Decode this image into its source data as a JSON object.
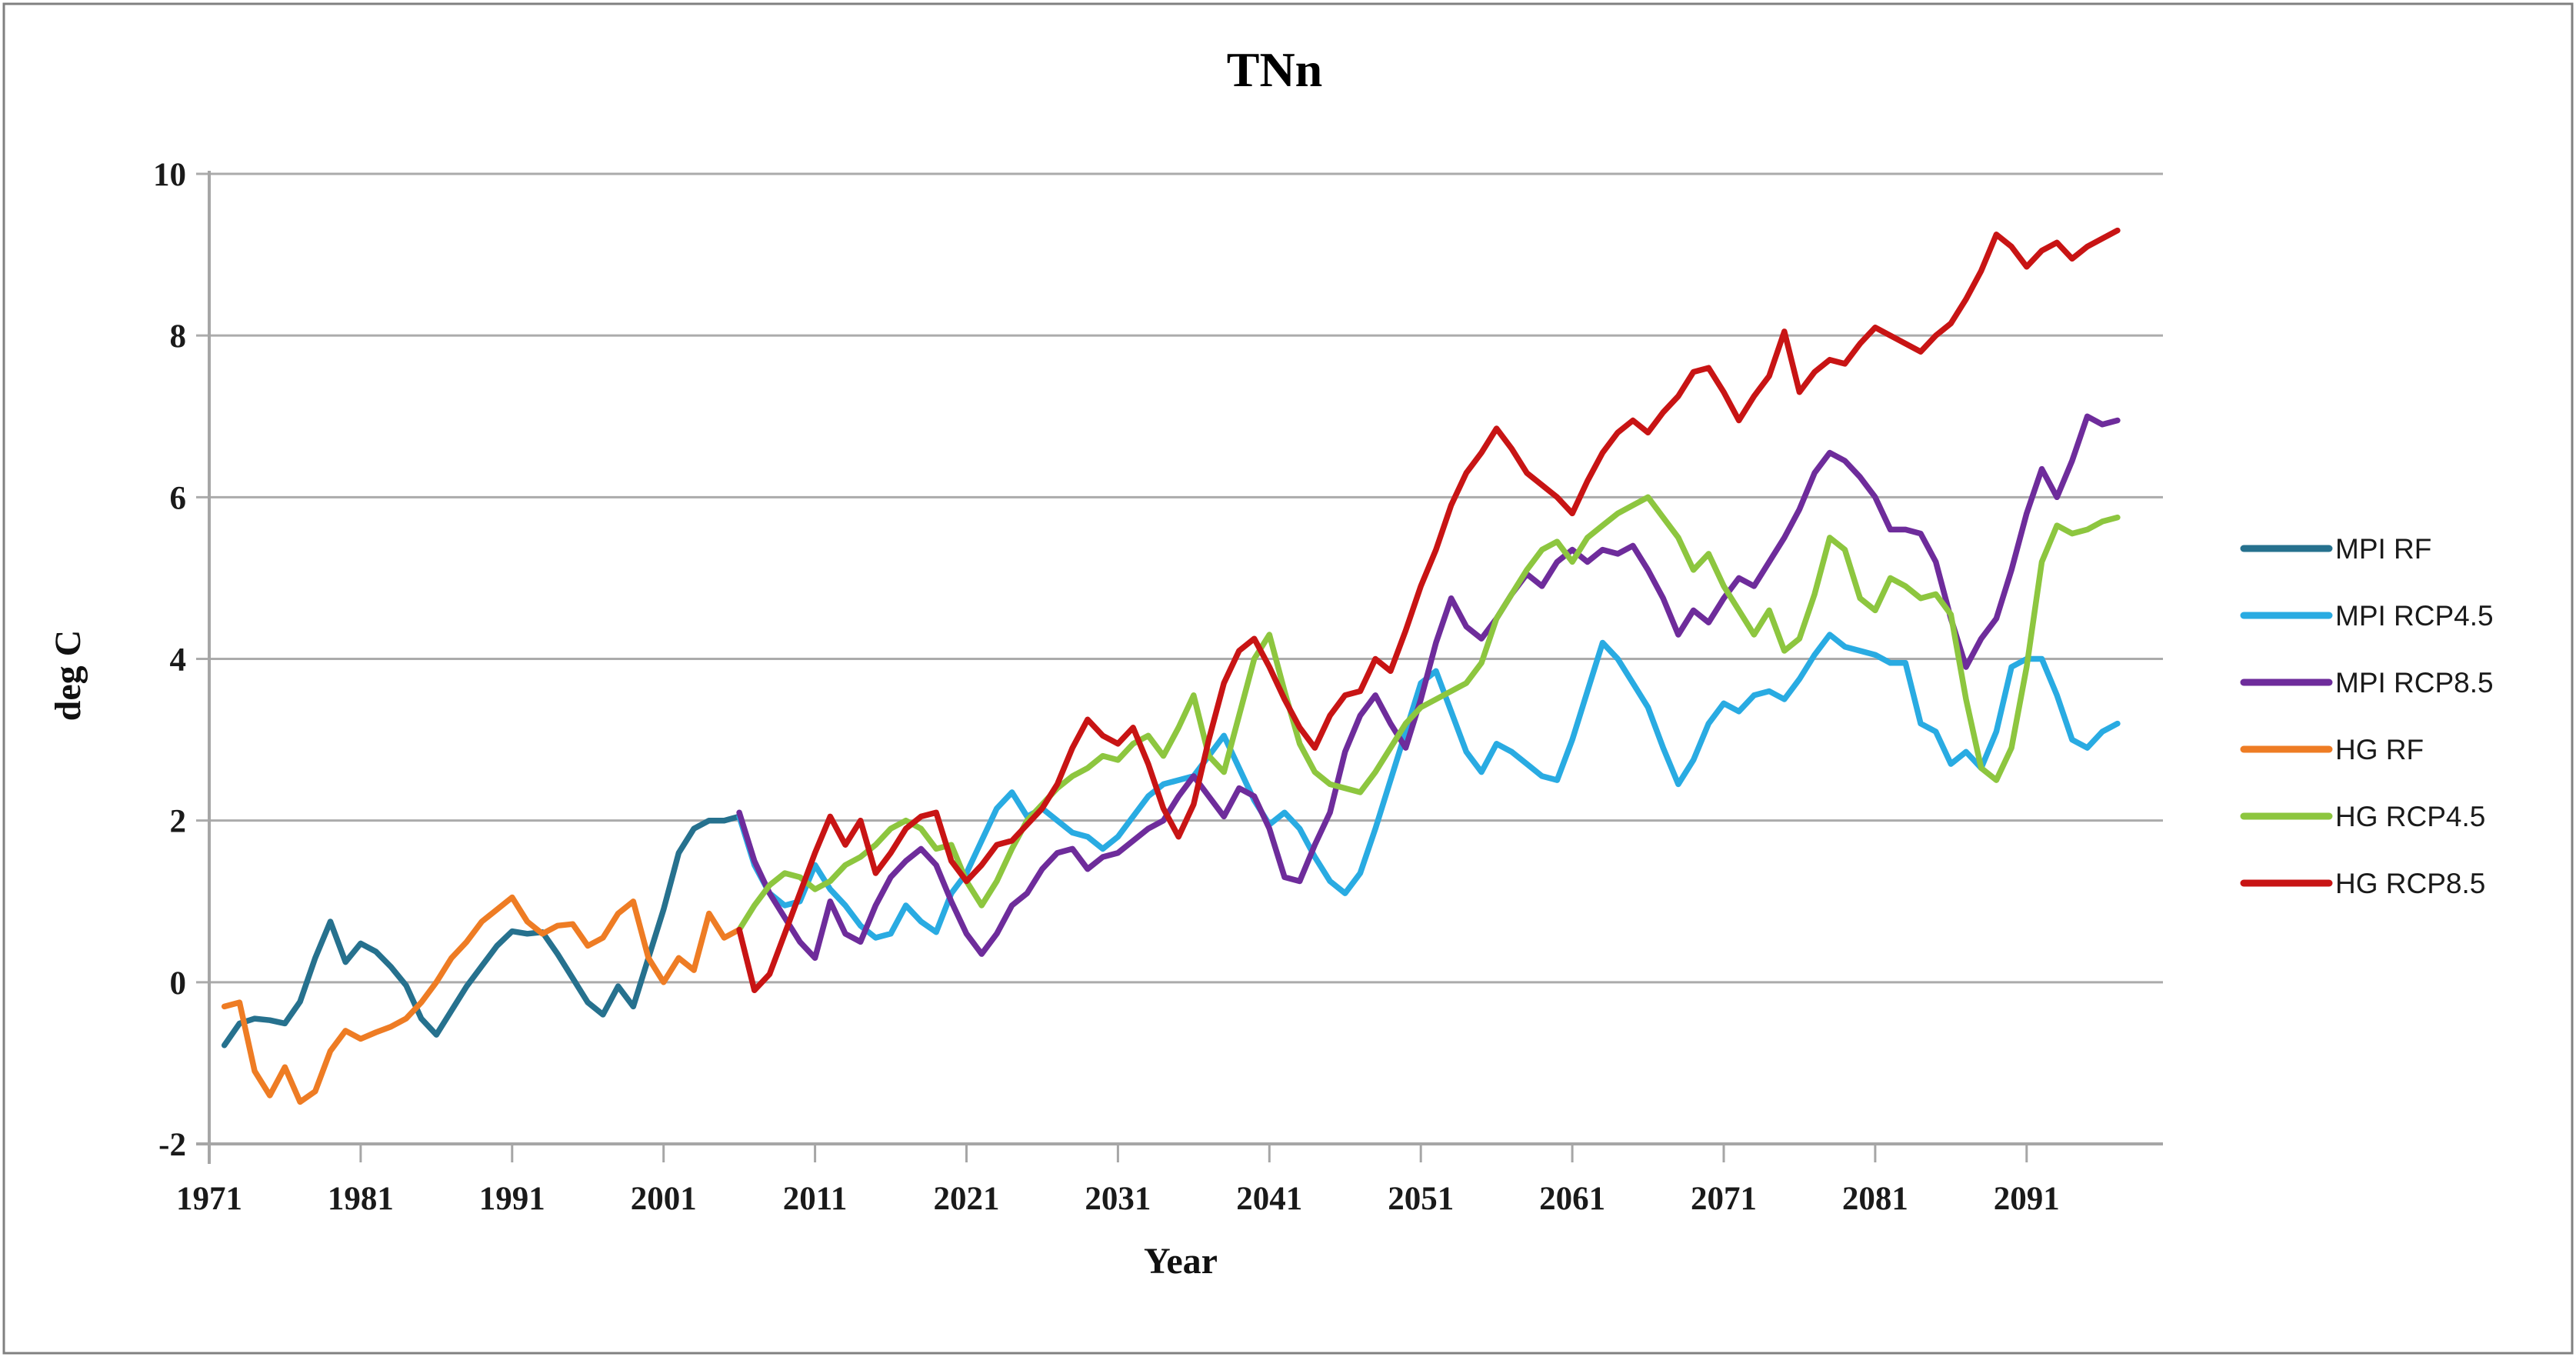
{
  "chart_data": {
    "type": "line",
    "title": "TNn",
    "xlabel": "Year",
    "ylabel": "deg C",
    "xlim": [
      1971,
      2100
    ],
    "ylim": [
      -2,
      10
    ],
    "x_ticks": [
      1971,
      1981,
      1991,
      2001,
      2011,
      2021,
      2031,
      2041,
      2051,
      2061,
      2071,
      2081,
      2091
    ],
    "y_ticks": [
      10,
      8,
      6,
      4,
      2,
      0,
      -2
    ],
    "grid": true,
    "legend_position": "right",
    "grid_color": "#ABABAB",
    "axis_color": "#A6A6A6",
    "text_color": "#1a1a1a",
    "border_color": "#808080",
    "background_color": "#FFFFFF",
    "series": [
      {
        "name": "MPI RF",
        "color": "#26718E",
        "start_year": 1972,
        "values": [
          -0.78,
          -0.51,
          -0.45,
          -0.47,
          -0.51,
          -0.24,
          0.3,
          0.75,
          0.25,
          0.48,
          0.38,
          0.19,
          -0.04,
          -0.45,
          -0.65,
          -0.35,
          -0.05,
          0.2,
          0.45,
          0.63,
          0.6,
          0.62,
          0.35,
          0.05,
          -0.25,
          -0.4,
          -0.05,
          -0.3,
          0.3,
          0.9,
          1.6,
          1.9,
          2.0,
          2.0,
          2.05
        ]
      },
      {
        "name": "MPI RCP4.5",
        "color": "#29ABE2",
        "start_year": 2006,
        "values": [
          2.05,
          1.45,
          1.1,
          0.95,
          1.0,
          1.45,
          1.15,
          0.95,
          0.7,
          0.55,
          0.6,
          0.95,
          0.75,
          0.62,
          1.1,
          1.35,
          1.75,
          2.15,
          2.35,
          2.05,
          2.15,
          2.0,
          1.85,
          1.8,
          1.65,
          1.8,
          2.05,
          2.3,
          2.45,
          2.5,
          2.55,
          2.8,
          3.05,
          2.65,
          2.25,
          1.95,
          2.1,
          1.9,
          1.55,
          1.25,
          1.1,
          1.35,
          1.9,
          2.5,
          3.1,
          3.7,
          3.85,
          3.35,
          2.85,
          2.6,
          2.95,
          2.85,
          2.7,
          2.55,
          2.5,
          3.0,
          3.6,
          4.2,
          4.0,
          3.7,
          3.4,
          2.9,
          2.45,
          2.75,
          3.2,
          3.45,
          3.35,
          3.55,
          3.6,
          3.5,
          3.75,
          4.05,
          4.3,
          4.15,
          4.1,
          4.05,
          3.95,
          3.95,
          3.2,
          3.1,
          2.7,
          2.85,
          2.65,
          3.1,
          3.9,
          4.0,
          4.0,
          3.55,
          3.0,
          2.9,
          3.1,
          3.2
        ]
      },
      {
        "name": "MPI RCP8.5",
        "color": "#6E2C9B",
        "start_year": 2006,
        "values": [
          2.1,
          1.5,
          1.1,
          0.8,
          0.5,
          0.3,
          1.0,
          0.6,
          0.5,
          0.95,
          1.3,
          1.5,
          1.65,
          1.45,
          1.0,
          0.6,
          0.35,
          0.6,
          0.95,
          1.1,
          1.4,
          1.6,
          1.65,
          1.4,
          1.55,
          1.6,
          1.75,
          1.9,
          2.0,
          2.3,
          2.55,
          2.3,
          2.05,
          2.4,
          2.3,
          1.9,
          1.3,
          1.25,
          1.7,
          2.1,
          2.85,
          3.3,
          3.55,
          3.2,
          2.9,
          3.5,
          4.2,
          4.75,
          4.4,
          4.25,
          4.5,
          4.8,
          5.05,
          4.9,
          5.2,
          5.35,
          5.2,
          5.35,
          5.3,
          5.4,
          5.1,
          4.75,
          4.3,
          4.6,
          4.45,
          4.75,
          5.0,
          4.9,
          5.2,
          5.5,
          5.85,
          6.3,
          6.55,
          6.45,
          6.25,
          6.0,
          5.6,
          5.6,
          5.55,
          5.2,
          4.5,
          3.9,
          4.25,
          4.5,
          5.1,
          5.8,
          6.35,
          6.0,
          6.45,
          7.0,
          6.9,
          6.95
        ]
      },
      {
        "name": "HG RF",
        "color": "#EE7C24",
        "start_year": 1972,
        "values": [
          -0.3,
          -0.25,
          -1.1,
          -1.4,
          -1.05,
          -1.48,
          -1.35,
          -0.85,
          -0.6,
          -0.7,
          -0.62,
          -0.55,
          -0.45,
          -0.25,
          0.0,
          0.3,
          0.5,
          0.75,
          0.9,
          1.05,
          0.75,
          0.6,
          0.7,
          0.72,
          0.45,
          0.55,
          0.85,
          1.0,
          0.3,
          0.0,
          0.3,
          0.15,
          0.85,
          0.55,
          0.65
        ]
      },
      {
        "name": "HG RCP4.5",
        "color": "#8DC63F",
        "start_year": 2006,
        "values": [
          0.65,
          0.95,
          1.2,
          1.35,
          1.3,
          1.15,
          1.25,
          1.45,
          1.55,
          1.7,
          1.9,
          2.0,
          1.9,
          1.65,
          1.7,
          1.25,
          0.95,
          1.25,
          1.65,
          2.0,
          2.2,
          2.4,
          2.55,
          2.65,
          2.8,
          2.75,
          2.95,
          3.05,
          2.8,
          3.15,
          3.55,
          2.8,
          2.6,
          3.3,
          4.0,
          4.3,
          3.6,
          2.95,
          2.6,
          2.45,
          2.4,
          2.35,
          2.6,
          2.9,
          3.2,
          3.4,
          3.5,
          3.6,
          3.7,
          3.95,
          4.5,
          4.8,
          5.1,
          5.35,
          5.45,
          5.2,
          5.5,
          5.65,
          5.8,
          5.9,
          6.0,
          5.75,
          5.5,
          5.1,
          5.3,
          4.9,
          4.6,
          4.3,
          4.6,
          4.1,
          4.25,
          4.8,
          5.5,
          5.35,
          4.75,
          4.6,
          5.0,
          4.9,
          4.75,
          4.8,
          4.55,
          3.5,
          2.65,
          2.5,
          2.9,
          3.9,
          5.2,
          5.65,
          5.55,
          5.6,
          5.7,
          5.75
        ]
      },
      {
        "name": "HG RCP8.5",
        "color": "#C81414",
        "start_year": 2006,
        "values": [
          0.65,
          -0.1,
          0.1,
          0.6,
          1.1,
          1.6,
          2.05,
          1.7,
          2.0,
          1.35,
          1.6,
          1.9,
          2.05,
          2.1,
          1.5,
          1.25,
          1.45,
          1.7,
          1.75,
          1.95,
          2.15,
          2.45,
          2.9,
          3.25,
          3.05,
          2.95,
          3.15,
          2.7,
          2.15,
          1.8,
          2.2,
          3.0,
          3.7,
          4.1,
          4.25,
          3.9,
          3.5,
          3.15,
          2.9,
          3.3,
          3.55,
          3.6,
          4.0,
          3.85,
          4.35,
          4.9,
          5.35,
          5.9,
          6.3,
          6.55,
          6.85,
          6.6,
          6.3,
          6.15,
          6.0,
          5.8,
          6.2,
          6.55,
          6.8,
          6.95,
          6.8,
          7.05,
          7.25,
          7.55,
          7.6,
          7.3,
          6.95,
          7.25,
          7.5,
          8.05,
          7.3,
          7.55,
          7.7,
          7.65,
          7.9,
          8.1,
          8.0,
          7.9,
          7.8,
          8.0,
          8.15,
          8.45,
          8.8,
          9.25,
          9.1,
          8.85,
          9.05,
          9.15,
          8.95,
          9.1,
          9.2,
          9.3
        ]
      }
    ]
  }
}
